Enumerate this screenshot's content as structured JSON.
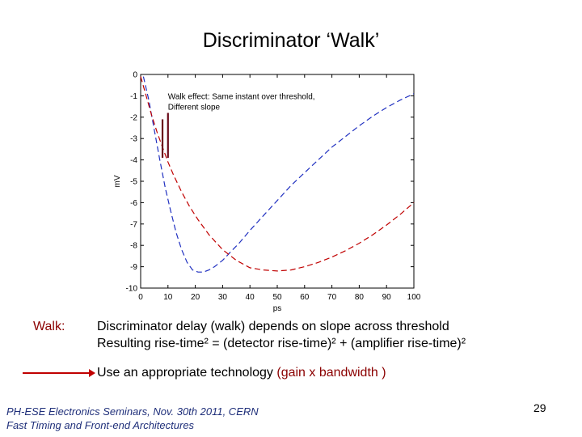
{
  "slide": {
    "title": "Discriminator ‘Walk’",
    "walk_label": "Walk:",
    "line1": "Discriminator delay (walk) depends on slope across threshold",
    "line2": "Resulting rise-time² = (detector rise-time)² + (amplifier rise-time)²",
    "line3_prefix": "Use an appropriate technology",
    "line3_emph": "(gain x bandwidth )",
    "footer1": "PH-ESE Electronics Seminars, Nov. 30th 2011, CERN",
    "footer2": "Fast Timing and Front-end Architectures",
    "page_number": "29",
    "accent_color": "#c00000"
  },
  "chart_data": {
    "type": "line",
    "xlabel": "ps",
    "ylabel": "mV",
    "xlim": [
      0,
      100
    ],
    "ylim": [
      -10,
      0
    ],
    "xticks": [
      0,
      10,
      20,
      30,
      40,
      50,
      60,
      70,
      80,
      90,
      100
    ],
    "xtick_labels": [
      "0",
      "10",
      "20",
      "30",
      "40",
      "50",
      "60",
      "70",
      "80",
      "90",
      "100"
    ],
    "yticks": [
      0,
      -1,
      -2,
      -3,
      -4,
      -5,
      -6,
      -7,
      -8,
      -9,
      -10
    ],
    "ytick_labels": [
      "0",
      "-1",
      "-2",
      "-3",
      "-4",
      "-5",
      "-6",
      "-7",
      "-8",
      "-9",
      "-10"
    ],
    "annotation": [
      "Walk effect: Same instant over threshold,",
      "Different slope"
    ],
    "series": [
      {
        "color": "#2030c0",
        "x": [
          1,
          3,
          5,
          7,
          9,
          11,
          13,
          15,
          17,
          19,
          21,
          23,
          25,
          27,
          30,
          33,
          36,
          40,
          45,
          50,
          55,
          60,
          65,
          70,
          75,
          80,
          85,
          90,
          95,
          100
        ],
        "y": [
          -0.1,
          -1.2,
          -2.6,
          -4.0,
          -5.3,
          -6.4,
          -7.4,
          -8.2,
          -8.8,
          -9.15,
          -9.25,
          -9.25,
          -9.15,
          -9.0,
          -8.7,
          -8.3,
          -7.9,
          -7.3,
          -6.6,
          -5.9,
          -5.2,
          -4.6,
          -4.0,
          -3.4,
          -2.9,
          -2.4,
          -1.95,
          -1.55,
          -1.2,
          -0.9
        ]
      },
      {
        "color": "#c00000",
        "x": [
          0,
          2,
          4,
          6,
          8,
          10,
          12,
          15,
          18,
          21,
          25,
          30,
          35,
          40,
          45,
          50,
          55,
          60,
          65,
          70,
          75,
          80,
          85,
          90,
          95,
          100
        ],
        "y": [
          -0.1,
          -1.0,
          -1.9,
          -2.7,
          -3.4,
          -4.1,
          -4.7,
          -5.5,
          -6.2,
          -6.8,
          -7.5,
          -8.2,
          -8.7,
          -9.05,
          -9.15,
          -9.2,
          -9.15,
          -9.0,
          -8.8,
          -8.55,
          -8.25,
          -7.9,
          -7.5,
          -7.05,
          -6.55,
          -6.0
        ]
      }
    ],
    "walk_markers": [
      {
        "x": 8,
        "y_top": -2.1,
        "y_bottom": -3.9
      },
      {
        "x": 10,
        "y_top": -1.8,
        "y_bottom": -3.9
      }
    ]
  }
}
